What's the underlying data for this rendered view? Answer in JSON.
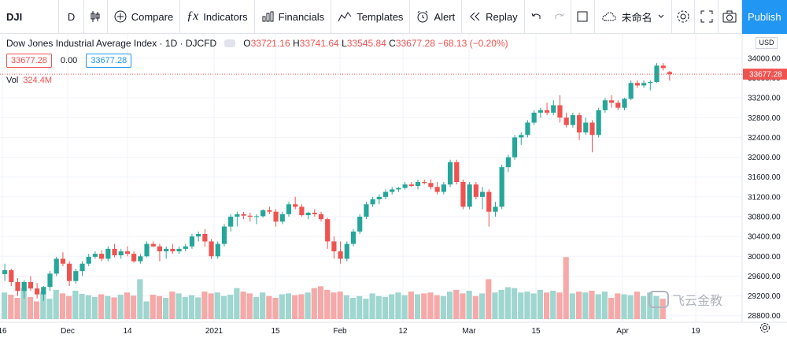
{
  "toolbar": {
    "symbol": "DJI",
    "interval": "D",
    "compare": "Compare",
    "indicators": "Indicators",
    "financials": "Financials",
    "templates": "Templates",
    "alert": "Alert",
    "replay": "Replay",
    "layout_name": "未命名",
    "publish": "Publish"
  },
  "legend": {
    "title": "Dow Jones Industrial Average Index · 1D · DJCFD",
    "o_key": "O",
    "o": "33721.16",
    "h_key": "H",
    "h": "33741.64",
    "l_key": "L",
    "l": "33545.84",
    "c_key": "C",
    "c": "33677.28",
    "change": "−68.13 (−0.20%)",
    "bid": "33677.28",
    "spread": "0.00",
    "ask": "33677.28",
    "vol_label": "Vol",
    "vol_value": "324.4M"
  },
  "price_axis": {
    "currency": "USD",
    "last_price": "33677.28",
    "ticks": [
      "34000.00",
      "33600.00",
      "33200.00",
      "32800.00",
      "32400.00",
      "32000.00",
      "31600.00",
      "31200.00",
      "30800.00",
      "30400.00",
      "30000.00",
      "29600.00",
      "29200.00",
      "28800.00"
    ]
  },
  "time_axis": {
    "labels": [
      "16",
      "Dec",
      "14",
      "2021",
      "15",
      "Feb",
      "12",
      "Mar",
      "15",
      "Apr",
      "19"
    ]
  },
  "watermark": "飞云金教",
  "colors": {
    "up": "#26a69a",
    "down": "#ef5350",
    "up_vol": "#9fd6cf",
    "down_vol": "#f5a9a8",
    "accent": "#2196f3"
  },
  "chart_data": {
    "type": "candlestick",
    "ylim": [
      28700,
      34300
    ],
    "candles": [
      [
        29640,
        29850,
        29500,
        29720
      ],
      [
        29720,
        29750,
        29400,
        29480
      ],
      [
        29480,
        29560,
        29200,
        29300
      ],
      [
        29300,
        29520,
        29150,
        29480
      ],
      [
        29480,
        29600,
        29300,
        29350
      ],
      [
        29350,
        29460,
        29150,
        29230
      ],
      [
        29230,
        29400,
        29100,
        29380
      ],
      [
        29380,
        29700,
        29300,
        29650
      ],
      [
        29650,
        29990,
        29600,
        29950
      ],
      [
        29950,
        30080,
        29800,
        29850
      ],
      [
        29850,
        29900,
        29400,
        29500
      ],
      [
        29500,
        29750,
        29450,
        29700
      ],
      [
        29700,
        29900,
        29600,
        29850
      ],
      [
        29850,
        30050,
        29800,
        29990
      ],
      [
        29990,
        30100,
        29950,
        30050
      ],
      [
        30050,
        30120,
        29900,
        29950
      ],
      [
        29950,
        30200,
        29900,
        30150
      ],
      [
        30150,
        30250,
        29980,
        30020
      ],
      [
        30020,
        30150,
        29950,
        30100
      ],
      [
        30100,
        30200,
        30000,
        30050
      ],
      [
        30050,
        30100,
        29870,
        29900
      ],
      [
        29900,
        30050,
        29850,
        30000
      ],
      [
        30000,
        30300,
        29980,
        30250
      ],
      [
        30250,
        30300,
        30180,
        30200
      ],
      [
        30200,
        30250,
        29900,
        30100
      ],
      [
        30100,
        30200,
        29950,
        30150
      ],
      [
        30150,
        30250,
        30050,
        30100
      ],
      [
        30100,
        30200,
        30050,
        30150
      ],
      [
        30150,
        30250,
        30100,
        30200
      ],
      [
        30200,
        30450,
        30150,
        30400
      ],
      [
        30400,
        30500,
        30300,
        30450
      ],
      [
        30450,
        30550,
        30200,
        30300
      ],
      [
        30300,
        30350,
        29950,
        30000
      ],
      [
        30000,
        30300,
        29950,
        30250
      ],
      [
        30250,
        30650,
        30200,
        30600
      ],
      [
        30600,
        30850,
        30500,
        30800
      ],
      [
        30800,
        30900,
        30600,
        30850
      ],
      [
        30850,
        30900,
        30750,
        30820
      ],
      [
        30820,
        30880,
        30700,
        30800
      ],
      [
        30800,
        30850,
        30650,
        30810
      ],
      [
        30810,
        30950,
        30780,
        30930
      ],
      [
        30930,
        31000,
        30850,
        30900
      ],
      [
        30900,
        30950,
        30600,
        30700
      ],
      [
        30700,
        30900,
        30650,
        30850
      ],
      [
        30850,
        31100,
        30800,
        31050
      ],
      [
        31050,
        31200,
        30950,
        31000
      ],
      [
        31000,
        31050,
        30800,
        30830
      ],
      [
        30830,
        30900,
        30750,
        30880
      ],
      [
        30880,
        30950,
        30800,
        30850
      ],
      [
        30850,
        30900,
        30700,
        30750
      ],
      [
        30750,
        30780,
        30150,
        30300
      ],
      [
        30300,
        30400,
        29950,
        30100
      ],
      [
        30100,
        30300,
        29850,
        29950
      ],
      [
        29950,
        30300,
        29900,
        30250
      ],
      [
        30250,
        30550,
        30200,
        30500
      ],
      [
        30500,
        30850,
        30450,
        30800
      ],
      [
        30800,
        31100,
        30750,
        31050
      ],
      [
        31050,
        31200,
        31000,
        31150
      ],
      [
        31150,
        31250,
        31050,
        31200
      ],
      [
        31200,
        31350,
        31150,
        31300
      ],
      [
        31300,
        31400,
        31250,
        31350
      ],
      [
        31350,
        31400,
        31300,
        31380
      ],
      [
        31380,
        31500,
        31350,
        31450
      ],
      [
        31450,
        31500,
        31400,
        31420
      ],
      [
        31420,
        31550,
        31350,
        31500
      ],
      [
        31500,
        31550,
        31450,
        31480
      ],
      [
        31480,
        31550,
        31350,
        31400
      ],
      [
        31400,
        31500,
        31250,
        31300
      ],
      [
        31300,
        31500,
        31250,
        31450
      ],
      [
        31450,
        31950,
        31400,
        31900
      ],
      [
        31900,
        31950,
        31450,
        31500
      ],
      [
        31500,
        31550,
        30950,
        31000
      ],
      [
        31000,
        31500,
        30950,
        31450
      ],
      [
        31450,
        31500,
        31150,
        31200
      ],
      [
        31200,
        31400,
        30950,
        31300
      ],
      [
        31300,
        31350,
        30600,
        30900
      ],
      [
        30900,
        31100,
        30800,
        31000
      ],
      [
        31000,
        31850,
        30950,
        31800
      ],
      [
        31800,
        32050,
        31700,
        32000
      ],
      [
        32000,
        32450,
        31950,
        32400
      ],
      [
        32400,
        32500,
        32250,
        32450
      ],
      [
        32450,
        32750,
        32400,
        32700
      ],
      [
        32700,
        32950,
        32650,
        32900
      ],
      [
        32900,
        33000,
        32800,
        32950
      ],
      [
        32950,
        33100,
        32850,
        32900
      ],
      [
        32900,
        33150,
        32850,
        33050
      ],
      [
        33050,
        33250,
        32700,
        32800
      ],
      [
        32800,
        32900,
        32600,
        32650
      ],
      [
        32650,
        32900,
        32600,
        32850
      ],
      [
        32850,
        32900,
        32350,
        32500
      ],
      [
        32500,
        32800,
        32450,
        32700
      ],
      [
        32700,
        32750,
        32100,
        32450
      ],
      [
        32450,
        33000,
        32400,
        32950
      ],
      [
        32950,
        33200,
        32900,
        33150
      ],
      [
        33150,
        33250,
        33000,
        33100
      ],
      [
        33100,
        33150,
        32950,
        33000
      ],
      [
        33000,
        33200,
        32950,
        33180
      ],
      [
        33180,
        33550,
        33150,
        33500
      ],
      [
        33500,
        33550,
        33400,
        33450
      ],
      [
        33450,
        33550,
        33400,
        33500
      ],
      [
        33500,
        33550,
        33350,
        33520
      ],
      [
        33520,
        33900,
        33500,
        33850
      ],
      [
        33850,
        33900,
        33750,
        33800
      ],
      [
        33721.16,
        33741.64,
        33545.84,
        33677.28
      ]
    ],
    "volumes": [
      60,
      55,
      48,
      70,
      50,
      40,
      62,
      46,
      66,
      58,
      52,
      64,
      57,
      54,
      50,
      56,
      52,
      49,
      55,
      60,
      53,
      90,
      40,
      55,
      52,
      48,
      62,
      58,
      50,
      54,
      49,
      62,
      58,
      60,
      52,
      55,
      70,
      62,
      58,
      50,
      60,
      52,
      48,
      56,
      58,
      54,
      56,
      60,
      70,
      74,
      66,
      60,
      62,
      54,
      48,
      52,
      46,
      58,
      52,
      50,
      56,
      60,
      54,
      62,
      56,
      58,
      60,
      54,
      52,
      62,
      66,
      58,
      64,
      52,
      58,
      90,
      60,
      66,
      72,
      70,
      60,
      62,
      58,
      66,
      60,
      64,
      60,
      140,
      58,
      62,
      60,
      64,
      56,
      62,
      48,
      58,
      56,
      54,
      62,
      52,
      60,
      52,
      46
    ]
  }
}
